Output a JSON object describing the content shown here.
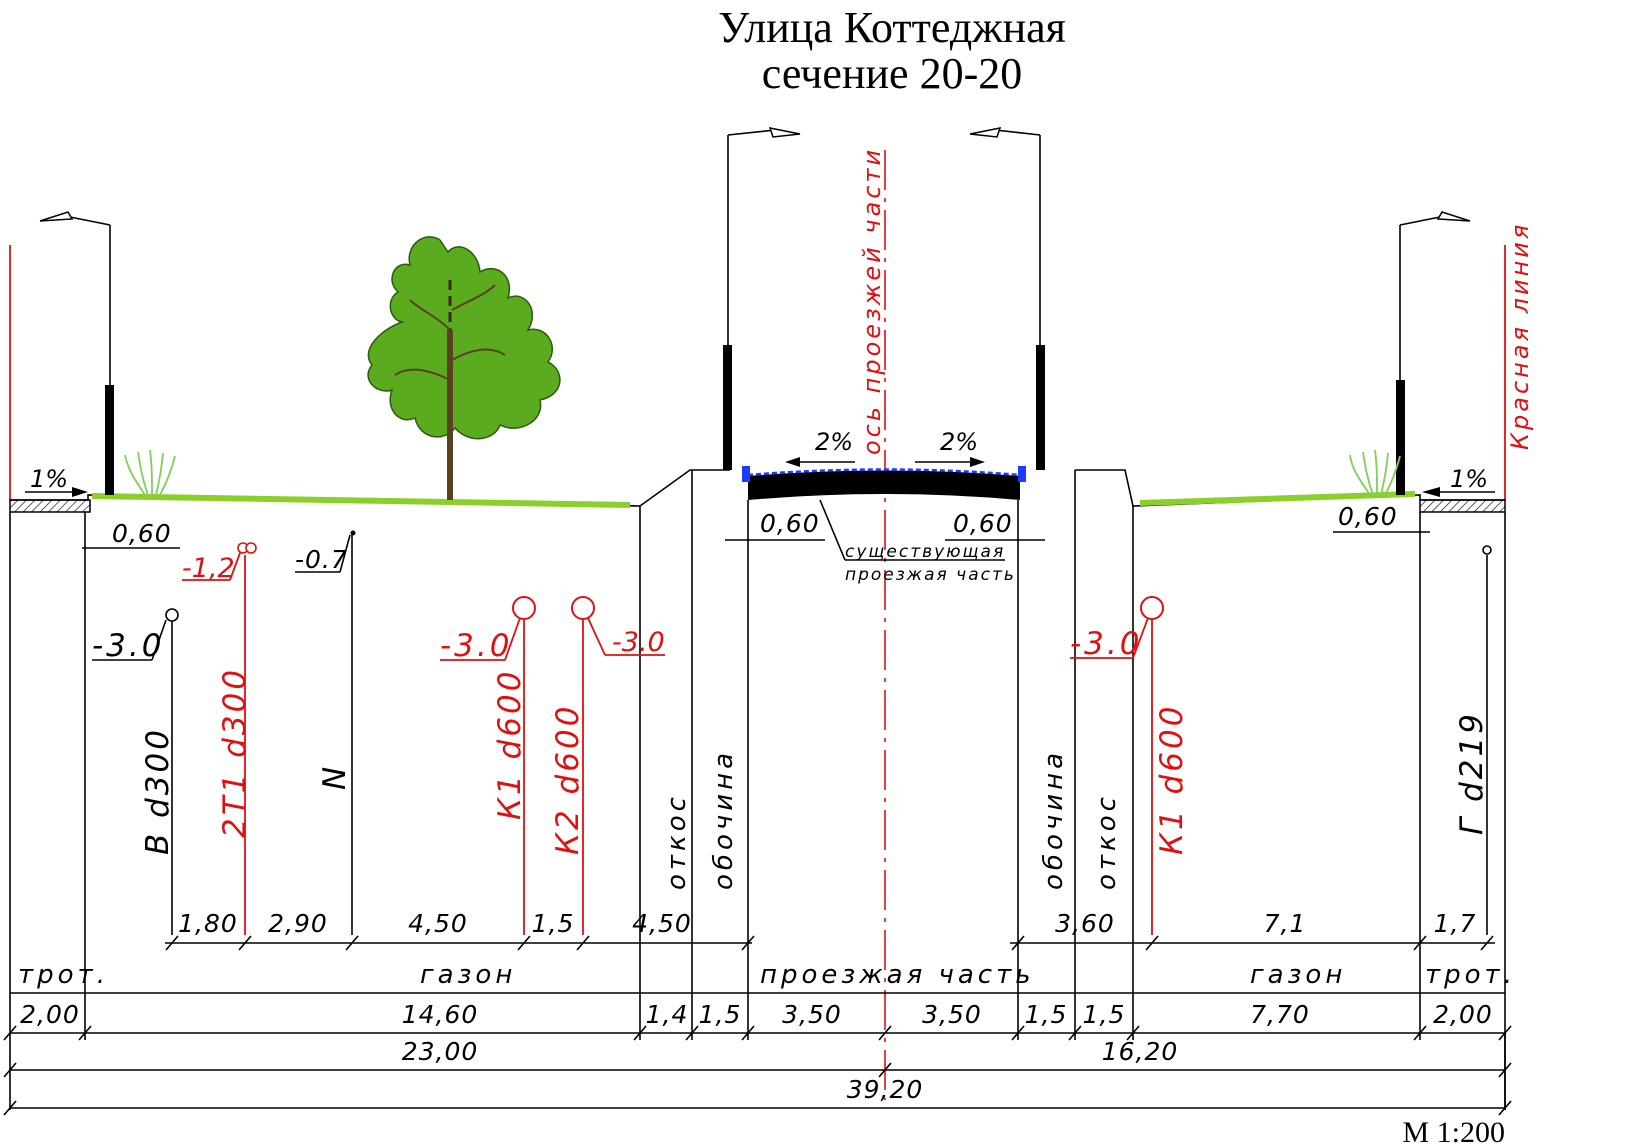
{
  "title": {
    "line1": "Улица Коттеджная",
    "line2": "сечение 20-20"
  },
  "scale": "М 1:200",
  "axis_label": "ось проезжей части",
  "red_line_label": "Красная линия",
  "slopes": {
    "left_sidewalk": "1%",
    "right_sidewalk": "1%",
    "road_left": "2%",
    "road_right": "2%"
  },
  "offsets": {
    "left_sidewalk": "0,60",
    "road_left": "0,60",
    "road_right": "0,60",
    "right_sidewalk": "0,60"
  },
  "existing_road_note": {
    "line1": "существующая",
    "line2": "проезжая часть"
  },
  "utilities": [
    {
      "name": "В d300",
      "depth": "-3.0",
      "color": "#000000"
    },
    {
      "name": "2Т1 d300",
      "depth": "-1,2",
      "color": "#e01010"
    },
    {
      "name": "N",
      "depth": "-0.7",
      "color": "#000000"
    },
    {
      "name": "К1 d600",
      "depth": "-3.0",
      "color": "#e01010"
    },
    {
      "name": "К2 d600",
      "depth": "-3.0",
      "color": "#e01010"
    },
    {
      "name": "К1 d600",
      "depth": "-3.0",
      "color": "#e01010"
    },
    {
      "name": "Г d219",
      "depth": "",
      "color": "#000000"
    }
  ],
  "zone_labels": {
    "left_slope": "откос",
    "left_shoulder": "обочина",
    "right_shoulder": "обочина",
    "right_slope": "откос"
  },
  "utility_spacing": {
    "left": [
      "1,80",
      "2,90",
      "4,50",
      "1,5",
      "4,50"
    ],
    "right": [
      "3,60",
      "7,1",
      "1,7"
    ]
  },
  "zones": {
    "names": [
      "трот.",
      "газон",
      "проезжая часть",
      "газон",
      "трот."
    ],
    "widths": [
      "2,00",
      "14,60",
      "1,4",
      "1,5",
      "3,50",
      "3,50",
      "1,5",
      "1,5",
      "7,70",
      "2,00"
    ]
  },
  "totals": {
    "left": "23,00",
    "right": "16,20",
    "overall": "39,20"
  },
  "colors": {
    "red_line": "#e01010",
    "grass": "#8ccf2a",
    "tree": "#5aac1e",
    "curb": "#1a3cff"
  }
}
